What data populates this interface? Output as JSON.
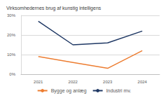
{
  "chart_data": {
    "type": "line",
    "title": "Virksomhedernes brug af kunstig intelligens",
    "categories": [
      "2021",
      "2022",
      "2023",
      "2024"
    ],
    "series": [
      {
        "name": "Bygge og anlæg",
        "color": "#ed7d31",
        "values": [
          9,
          6,
          3,
          12
        ]
      },
      {
        "name": "Industri mv.",
        "color": "#1f3864",
        "values": [
          27,
          15,
          16,
          22
        ]
      }
    ],
    "ylim": [
      0,
      30
    ],
    "yticks": [
      {
        "value": 0,
        "label": "0%"
      },
      {
        "value": 10,
        "label": "10%"
      },
      {
        "value": 20,
        "label": "20%"
      },
      {
        "value": 30,
        "label": "30%"
      }
    ],
    "grid": true,
    "legend": "bottom"
  }
}
